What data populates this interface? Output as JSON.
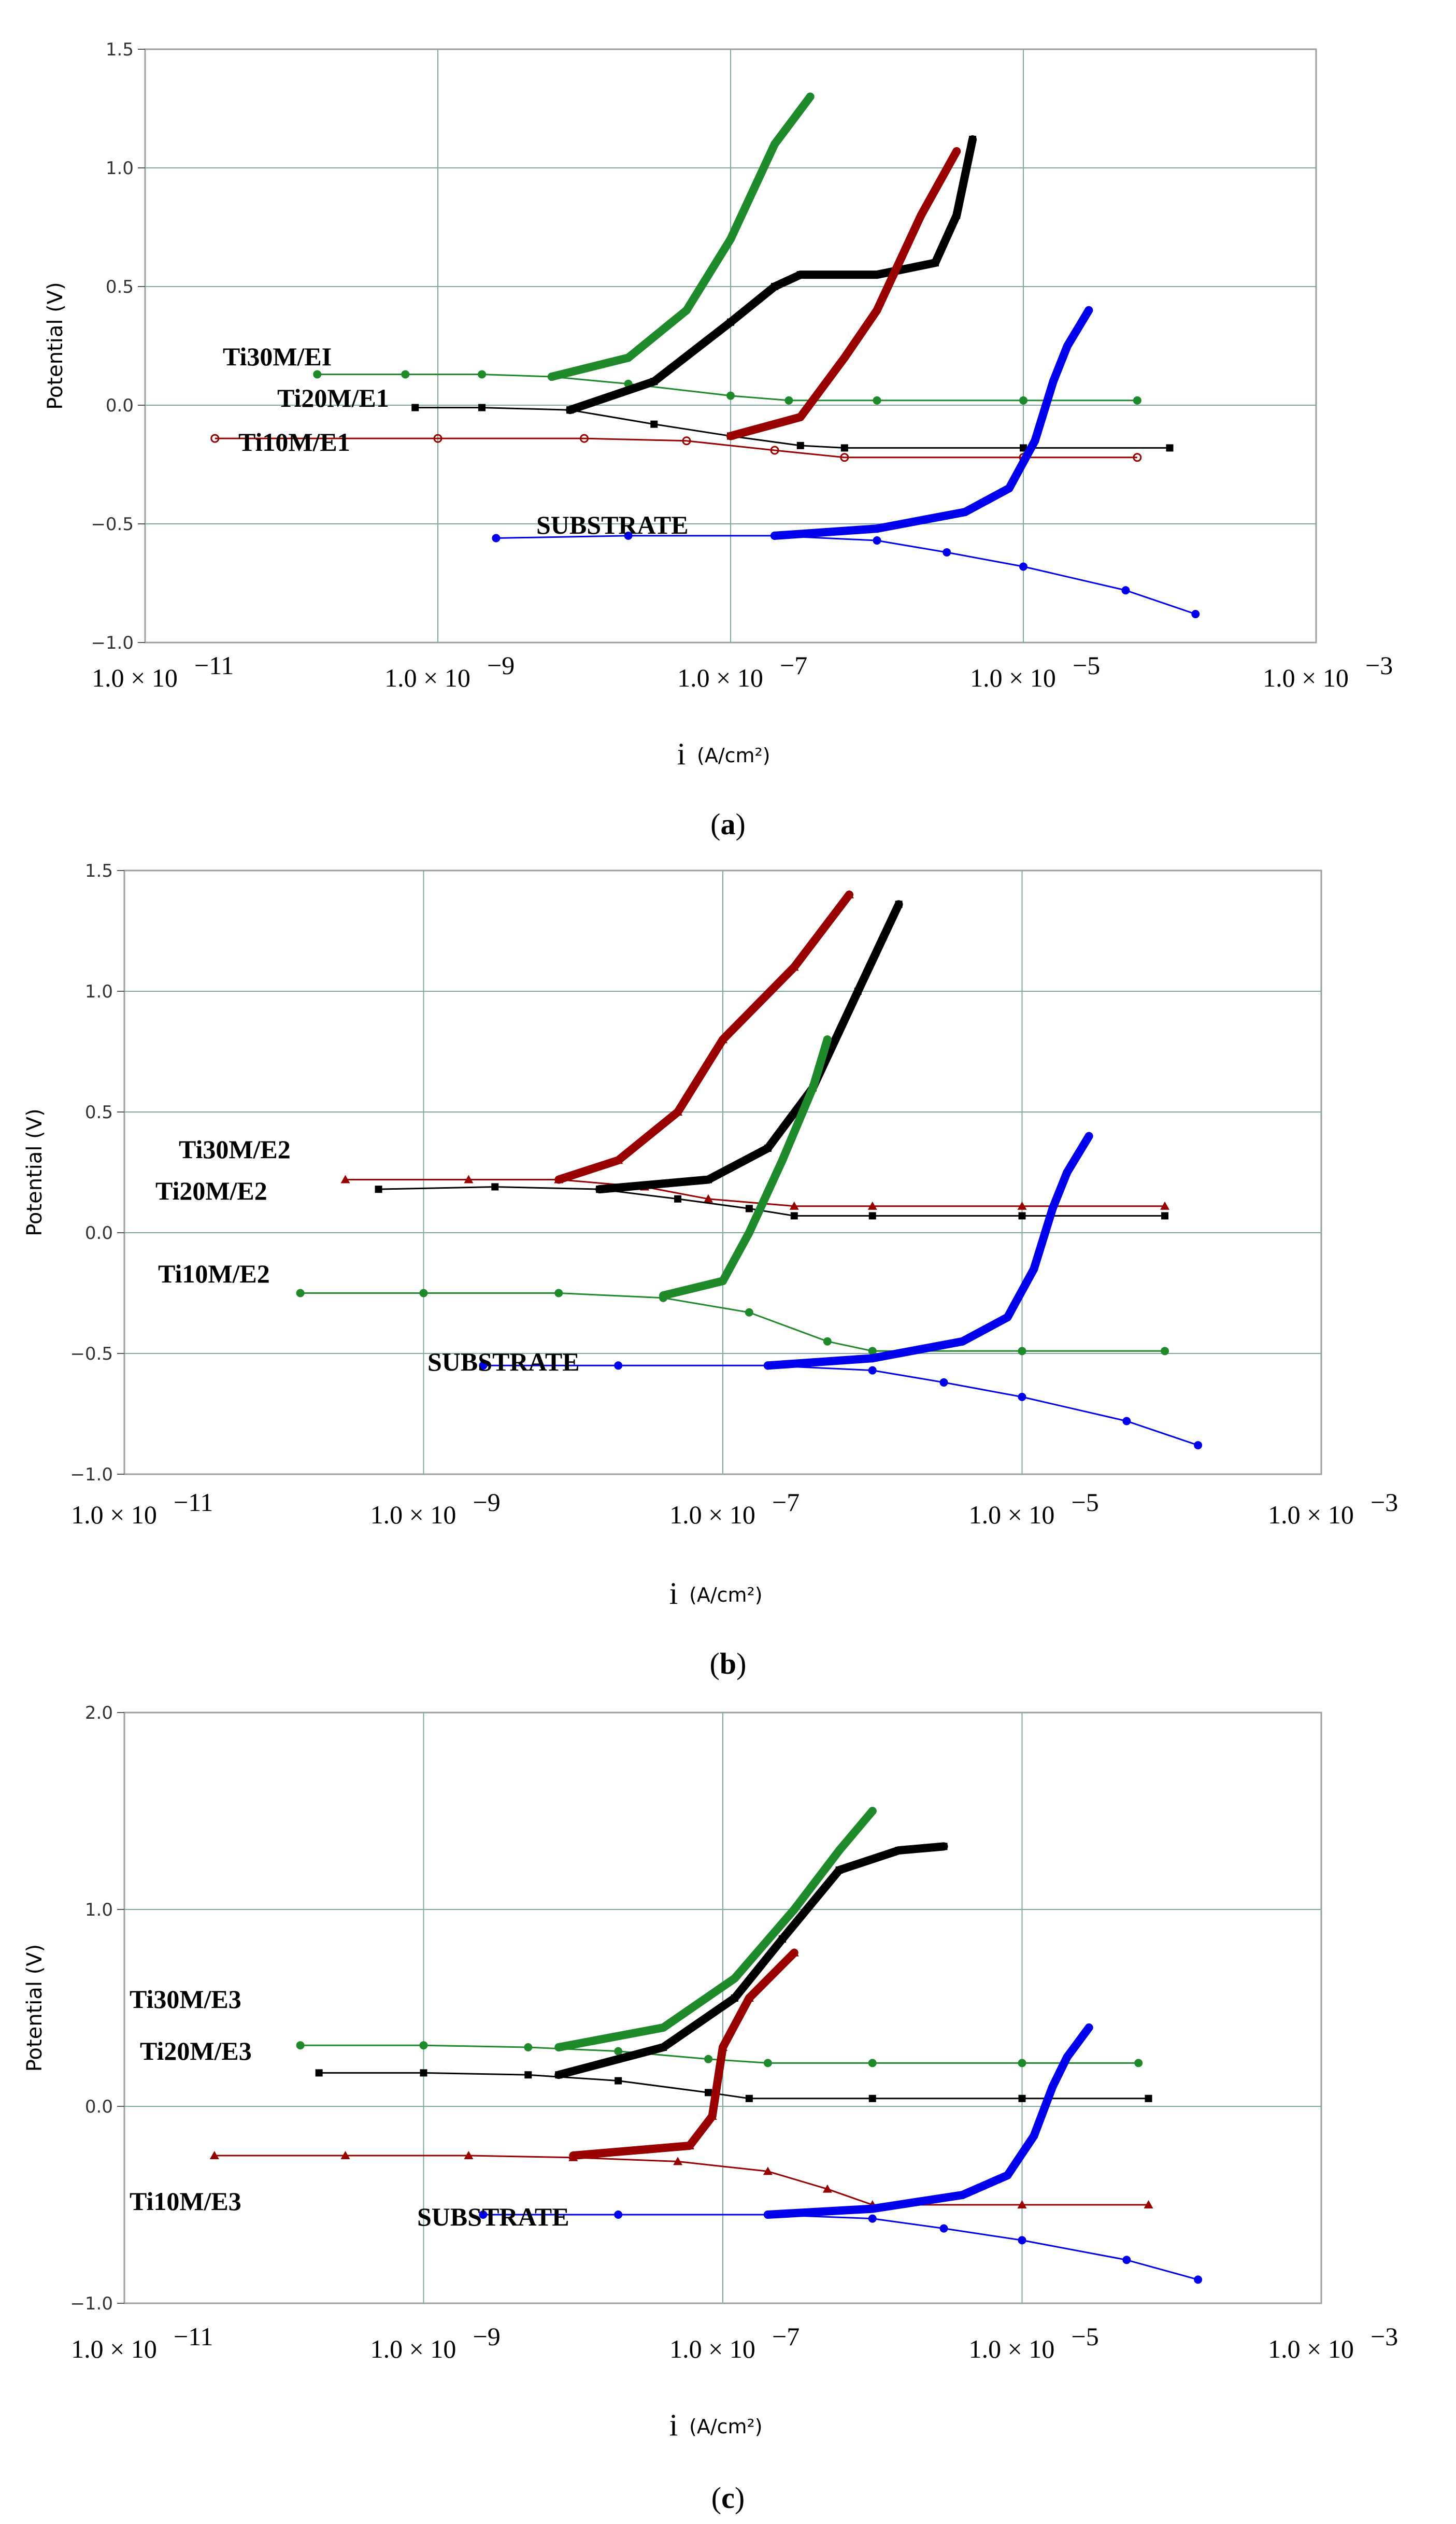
{
  "chart_data": [
    {
      "type": "line",
      "caption_letter": "a",
      "xscale": "log",
      "xlim": [
        1e-11,
        0.001
      ],
      "ylim": [
        -1.0,
        1.5
      ],
      "yticks": [
        "1.5",
        "1.0",
        "0.5",
        "0.0",
        "-0.5",
        "-1.0"
      ],
      "xticks": [
        "1.0 × 10",
        "1.0 × 10",
        "1.0 × 10",
        "1.0 × 10",
        "1.0 × 10"
      ],
      "xtick_exponents": [
        "−11",
        "−9",
        "−7",
        "−5",
        "−3"
      ],
      "ylabel": "Potential (V)",
      "xlabel": "i",
      "xlabel_unit": "(A/cm²)",
      "series": [
        {
          "name": "Ti30M/EI",
          "color": "#1f8a2a",
          "marker": "circle",
          "points": [
            [
              1.5e-10,
              0.13
            ],
            [
              6e-10,
              0.13
            ],
            [
              2e-09,
              0.13
            ],
            [
              6e-09,
              0.12
            ],
            [
              2e-08,
              0.09
            ],
            [
              1e-07,
              0.04
            ],
            [
              2.5e-07,
              0.02
            ],
            [
              1e-06,
              0.02
            ],
            [
              1e-05,
              0.02
            ],
            [
              6e-05,
              0.02
            ]
          ],
          "anodic": [
            [
              6e-09,
              0.12
            ],
            [
              2e-08,
              0.2
            ],
            [
              5e-08,
              0.4
            ],
            [
              1e-07,
              0.7
            ],
            [
              2e-07,
              1.1
            ],
            [
              3.5e-07,
              1.3
            ]
          ],
          "label_value": {
            "i": 5e-11,
            "v": 0.15
          }
        },
        {
          "name": "Ti20M/E1",
          "color": "#000000",
          "marker": "square",
          "points": [
            [
              7e-10,
              -0.01
            ],
            [
              2e-09,
              -0.01
            ],
            [
              8e-09,
              -0.02
            ],
            [
              3e-08,
              -0.08
            ],
            [
              1e-07,
              -0.13
            ],
            [
              3e-07,
              -0.17
            ],
            [
              6e-07,
              -0.18
            ],
            [
              1e-05,
              -0.18
            ],
            [
              0.0001,
              -0.18
            ]
          ],
          "anodic": [
            [
              8e-09,
              -0.02
            ],
            [
              3e-08,
              0.1
            ],
            [
              1e-07,
              0.35
            ],
            [
              2e-07,
              0.5
            ],
            [
              3e-07,
              0.55
            ],
            [
              1e-06,
              0.55
            ],
            [
              2.5e-06,
              0.6
            ],
            [
              3.5e-06,
              0.8
            ],
            [
              4.5e-06,
              1.12
            ]
          ],
          "label_value": {
            "i": 1.2e-09,
            "v": -0.01
          }
        },
        {
          "name": "Ti10M/E1",
          "color": "#990000",
          "marker": "open-circle",
          "points": [
            [
              3e-11,
              -0.14
            ],
            [
              1e-09,
              -0.14
            ],
            [
              1e-08,
              -0.14
            ],
            [
              5e-08,
              -0.15
            ],
            [
              2e-07,
              -0.19
            ],
            [
              6e-07,
              -0.22
            ],
            [
              1e-05,
              -0.22
            ],
            [
              6e-05,
              -0.22
            ]
          ],
          "anodic": [
            [
              1e-07,
              -0.13
            ],
            [
              3e-07,
              -0.05
            ],
            [
              6e-07,
              0.2
            ],
            [
              1e-06,
              0.4
            ],
            [
              2e-06,
              0.8
            ],
            [
              3.5e-06,
              1.07
            ]
          ],
          "label_value": {
            "i": 3e-11,
            "v": -0.2
          }
        },
        {
          "name": "SUBSTRATE",
          "color": "#0000ee",
          "marker": "circle",
          "points": [
            [
              2.5e-09,
              -0.56
            ],
            [
              2e-08,
              -0.55
            ],
            [
              2e-07,
              -0.55
            ],
            [
              1e-06,
              -0.57
            ],
            [
              3e-06,
              -0.62
            ],
            [
              1e-05,
              -0.68
            ],
            [
              5e-05,
              -0.78
            ],
            [
              0.00015,
              -0.88
            ]
          ],
          "anodic": [
            [
              2e-07,
              -0.55
            ],
            [
              1e-06,
              -0.52
            ],
            [
              4e-06,
              -0.45
            ],
            [
              8e-06,
              -0.35
            ],
            [
              1.2e-05,
              -0.15
            ],
            [
              1.6e-05,
              0.1
            ],
            [
              2e-05,
              0.25
            ],
            [
              2.8e-05,
              0.4
            ]
          ],
          "label_value": {
            "i": 2e-09,
            "v": -0.56
          }
        }
      ]
    },
    {
      "type": "line",
      "caption_letter": "b",
      "xscale": "log",
      "xlim": [
        1e-11,
        0.001
      ],
      "ylim": [
        -1.0,
        1.5
      ],
      "yticks": [
        "1.5",
        "1.0",
        "0.5",
        "0.0",
        "-0.5",
        "-1.0"
      ],
      "xticks": [
        "1.0 × 10",
        "1.0 × 10",
        "1.0 × 10",
        "1.0 × 10",
        "1.0 × 10"
      ],
      "xtick_exponents": [
        "−11",
        "−9",
        "−7",
        "−5",
        "−3"
      ],
      "ylabel": "Potential (V)",
      "xlabel": "i",
      "xlabel_unit": "(A/cm²)",
      "series": [
        {
          "name": "Ti30M/E2",
          "color": "#990000",
          "marker": "triangle",
          "points": [
            [
              3e-10,
              0.22
            ],
            [
              2e-09,
              0.22
            ],
            [
              8e-09,
              0.22
            ],
            [
              3e-08,
              0.19
            ],
            [
              8e-08,
              0.14
            ],
            [
              3e-07,
              0.11
            ],
            [
              1e-06,
              0.11
            ],
            [
              1e-05,
              0.11
            ],
            [
              9e-05,
              0.11
            ]
          ],
          "anodic": [
            [
              8e-09,
              0.22
            ],
            [
              2e-08,
              0.3
            ],
            [
              5e-08,
              0.5
            ],
            [
              1e-07,
              0.8
            ],
            [
              3e-07,
              1.1
            ],
            [
              7e-07,
              1.4
            ]
          ],
          "label_value": {
            "i": 3e-10,
            "v": 0.22
          }
        },
        {
          "name": "Ti20M/E2",
          "color": "#000000",
          "marker": "square",
          "points": [
            [
              5e-10,
              0.18
            ],
            [
              3e-09,
              0.19
            ],
            [
              1.5e-08,
              0.18
            ],
            [
              5e-08,
              0.14
            ],
            [
              1.5e-07,
              0.1
            ],
            [
              3e-07,
              0.07
            ],
            [
              1e-06,
              0.07
            ],
            [
              1e-05,
              0.07
            ],
            [
              9e-05,
              0.07
            ]
          ],
          "anodic": [
            [
              1.5e-08,
              0.18
            ],
            [
              8e-08,
              0.22
            ],
            [
              2e-07,
              0.35
            ],
            [
              4e-07,
              0.6
            ],
            [
              8e-07,
              1.0
            ],
            [
              1.5e-06,
              1.36
            ]
          ],
          "label_value": {
            "i": 5e-10,
            "v": 0.18
          }
        },
        {
          "name": "Ti10M/E2",
          "color": "#1f8a2a",
          "marker": "circle",
          "points": [
            [
              1.5e-10,
              -0.25
            ],
            [
              1e-09,
              -0.25
            ],
            [
              8e-09,
              -0.25
            ],
            [
              4e-08,
              -0.27
            ],
            [
              1.5e-07,
              -0.33
            ],
            [
              5e-07,
              -0.45
            ],
            [
              1e-06,
              -0.49
            ],
            [
              1e-05,
              -0.49
            ],
            [
              9e-05,
              -0.49
            ]
          ],
          "anodic": [
            [
              4e-08,
              -0.26
            ],
            [
              1e-07,
              -0.2
            ],
            [
              1.5e-07,
              0.0
            ],
            [
              2.5e-07,
              0.3
            ],
            [
              4e-07,
              0.6
            ],
            [
              5e-07,
              0.8
            ]
          ],
          "label_value": {
            "i": 1.5e-10,
            "v": -0.25
          }
        },
        {
          "name": "SUBSTRATE",
          "color": "#0000ee",
          "marker": "circle",
          "points": [
            [
              2.5e-09,
              -0.55
            ],
            [
              2e-08,
              -0.55
            ],
            [
              2e-07,
              -0.55
            ],
            [
              1e-06,
              -0.57
            ],
            [
              3e-06,
              -0.62
            ],
            [
              1e-05,
              -0.68
            ],
            [
              5e-05,
              -0.78
            ],
            [
              0.00015,
              -0.88
            ]
          ],
          "anodic": [
            [
              2e-07,
              -0.55
            ],
            [
              1e-06,
              -0.52
            ],
            [
              4e-06,
              -0.45
            ],
            [
              8e-06,
              -0.35
            ],
            [
              1.2e-05,
              -0.15
            ],
            [
              1.6e-05,
              0.1
            ],
            [
              2e-05,
              0.25
            ],
            [
              2.8e-05,
              0.4
            ]
          ],
          "label_value": {
            "i": 2.5e-09,
            "v": -0.55
          }
        }
      ]
    },
    {
      "type": "line",
      "caption_letter": "c",
      "xscale": "log",
      "xlim": [
        1e-11,
        0.001
      ],
      "ylim": [
        -1.0,
        2.0
      ],
      "yticks": [
        "2.0",
        "1.0",
        "0.0",
        "-1.0"
      ],
      "xticks": [
        "1.0 × 10",
        "1.0 × 10",
        "1.0 × 10",
        "1.0 × 10",
        "1.0 × 10"
      ],
      "xtick_exponents": [
        "−11",
        "−9",
        "−7",
        "−5",
        "−3"
      ],
      "ylabel": "Potential (V)",
      "xlabel": "i",
      "xlabel_unit": "(A/cm²)",
      "series": [
        {
          "name": "Ti30M/E3",
          "color": "#1f8a2a",
          "marker": "circle",
          "points": [
            [
              1.5e-10,
              0.31
            ],
            [
              1e-09,
              0.31
            ],
            [
              5e-09,
              0.3
            ],
            [
              2e-08,
              0.28
            ],
            [
              8e-08,
              0.24
            ],
            [
              2e-07,
              0.22
            ],
            [
              1e-06,
              0.22
            ],
            [
              1e-05,
              0.22
            ],
            [
              6e-05,
              0.22
            ]
          ],
          "anodic": [
            [
              8e-09,
              0.3
            ],
            [
              4e-08,
              0.4
            ],
            [
              1.2e-07,
              0.65
            ],
            [
              3e-07,
              1.0
            ],
            [
              6e-07,
              1.3
            ],
            [
              1e-06,
              1.5
            ]
          ],
          "label_value": {
            "i": 1e-11,
            "v": 0.5
          }
        },
        {
          "name": "Ti20M/E3",
          "color": "#000000",
          "marker": "square",
          "points": [
            [
              2e-10,
              0.17
            ],
            [
              1e-09,
              0.17
            ],
            [
              5e-09,
              0.16
            ],
            [
              2e-08,
              0.13
            ],
            [
              8e-08,
              0.07
            ],
            [
              1.5e-07,
              0.04
            ],
            [
              1e-06,
              0.04
            ],
            [
              1e-05,
              0.04
            ],
            [
              7e-05,
              0.04
            ]
          ],
          "anodic": [
            [
              8e-09,
              0.16
            ],
            [
              4e-08,
              0.3
            ],
            [
              1.2e-07,
              0.55
            ],
            [
              2.5e-07,
              0.85
            ],
            [
              6e-07,
              1.2
            ],
            [
              1.5e-06,
              1.3
            ],
            [
              3e-06,
              1.32
            ]
          ],
          "label_value": {
            "i": 1.5e-11,
            "v": 0.13
          }
        },
        {
          "name": "Ti10M/E3",
          "color": "#990000",
          "marker": "triangle",
          "points": [
            [
              4e-11,
              -0.25
            ],
            [
              3e-10,
              -0.25
            ],
            [
              2e-09,
              -0.25
            ],
            [
              1e-08,
              -0.26
            ],
            [
              5e-08,
              -0.28
            ],
            [
              2e-07,
              -0.33
            ],
            [
              5e-07,
              -0.42
            ],
            [
              1e-06,
              -0.5
            ],
            [
              1e-05,
              -0.5
            ],
            [
              7e-05,
              -0.5
            ]
          ],
          "anodic": [
            [
              1e-08,
              -0.25
            ],
            [
              6e-08,
              -0.2
            ],
            [
              8.5e-08,
              -0.05
            ],
            [
              1e-07,
              0.3
            ],
            [
              1.5e-07,
              0.55
            ],
            [
              3e-07,
              0.78
            ]
          ],
          "label_value": {
            "i": 1e-11,
            "v": -0.4
          }
        },
        {
          "name": "SUBSTRATE",
          "color": "#0000ee",
          "marker": "circle",
          "points": [
            [
              2.5e-09,
              -0.55
            ],
            [
              2e-08,
              -0.55
            ],
            [
              2e-07,
              -0.55
            ],
            [
              1e-06,
              -0.57
            ],
            [
              3e-06,
              -0.62
            ],
            [
              1e-05,
              -0.68
            ],
            [
              5e-05,
              -0.78
            ],
            [
              0.00015,
              -0.88
            ]
          ],
          "anodic": [
            [
              2e-07,
              -0.55
            ],
            [
              1e-06,
              -0.52
            ],
            [
              4e-06,
              -0.45
            ],
            [
              8e-06,
              -0.35
            ],
            [
              1.2e-05,
              -0.15
            ],
            [
              1.6e-05,
              0.1
            ],
            [
              2e-05,
              0.25
            ],
            [
              2.8e-05,
              0.4
            ]
          ],
          "label_value": {
            "i": 2.5e-09,
            "v": -0.55
          }
        }
      ]
    }
  ]
}
